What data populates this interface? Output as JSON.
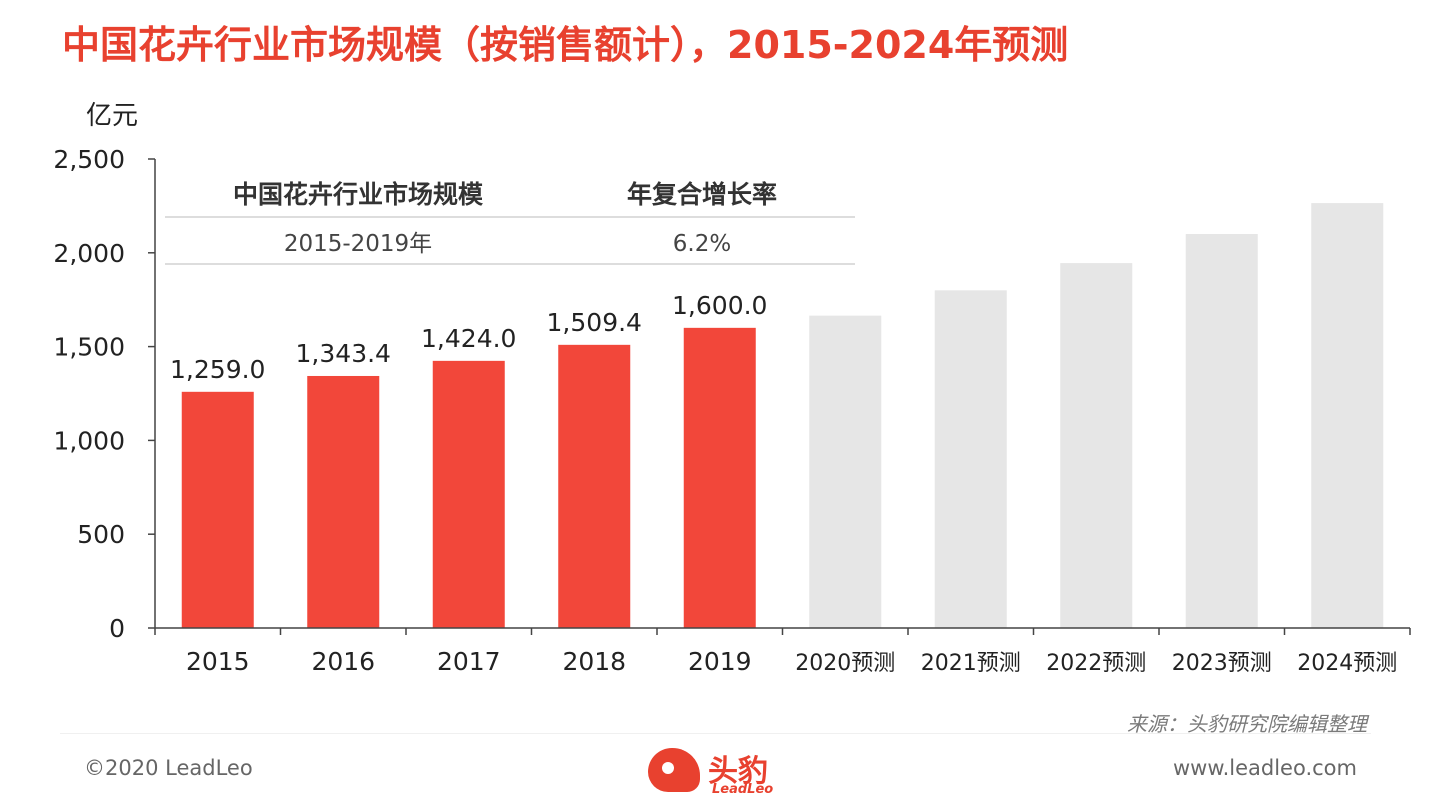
{
  "title": "中国花卉行业市场规模（按销售额计），2015-2024年预测",
  "chart_data": {
    "type": "bar",
    "unit_label": "亿元",
    "categories": [
      "2015",
      "2016",
      "2017",
      "2018",
      "2019",
      "2020预测",
      "2021预测",
      "2022预测",
      "2023预测",
      "2024预测"
    ],
    "values": [
      1259.0,
      1343.4,
      1424.0,
      1509.4,
      1600.0,
      1665,
      1800,
      1945,
      2100,
      2265
    ],
    "value_labels": [
      "1,259.0",
      "1,343.4",
      "1,424.0",
      "1,509.4",
      "1,600.0",
      null,
      null,
      null,
      null,
      null
    ],
    "forecast_from_index": 5,
    "ylim": [
      0,
      2500
    ],
    "yticks": [
      0,
      500,
      1000,
      1500,
      2000,
      2500
    ],
    "ytick_labels": [
      "0",
      "500",
      "1,000",
      "1,500",
      "2,000",
      "2,500"
    ],
    "colors": {
      "actual": "#f2473a",
      "forecast": "#e6e6e6"
    },
    "inset_table": {
      "headers": [
        "中国花卉行业市场规模",
        "年复合增长率"
      ],
      "row": [
        "2015-2019年",
        "6.2%"
      ]
    }
  },
  "footer": {
    "source": "来源：头豹研究院编辑整理",
    "copyright": "©2020 LeadLeo",
    "website": "www.leadleo.com",
    "logo_cn": "头豹",
    "logo_en": "LeadLeo"
  }
}
